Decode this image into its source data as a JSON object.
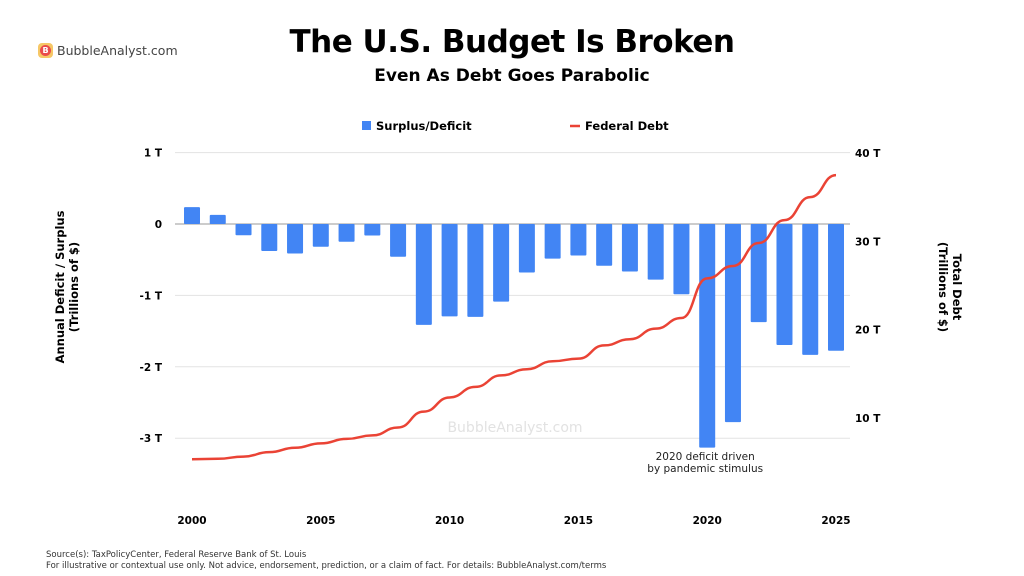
{
  "brand": "BubbleAnalyst.com",
  "watermark": "BubbleAnalyst.com",
  "footer": {
    "source": "Source(s): TaxPolicyCenter, Federal Reserve Bank of St. Louis",
    "disclaimer": "For illustrative or contextual use only. Not advice, endorsement, prediction, or a claim of fact. For details: BubbleAnalyst.com/terms"
  },
  "chart_data": {
    "type": "bar+line",
    "title": "The U.S. Budget Is Broken",
    "subtitle": "Even As Debt Goes Parabolic",
    "ylabel_left": "Annual Deficit / Surplus\n(Trillions of $)",
    "ylabel_left_lines": [
      "Annual Deficit / Surplus",
      "(Trillions of $)"
    ],
    "ylabel_right_lines": [
      "Total Debt",
      "(Trillions of $)"
    ],
    "ylim_left": [
      -3.95,
      1
    ],
    "ylim_right": [
      0,
      40
    ],
    "left_ticks": [
      {
        "v": 1,
        "label": "1 T"
      },
      {
        "v": 0,
        "label": "0"
      },
      {
        "v": -1,
        "label": "-1 T"
      },
      {
        "v": -2,
        "label": "-2 T"
      },
      {
        "v": -3,
        "label": "-3 T"
      }
    ],
    "right_ticks": [
      {
        "v": 40,
        "label": "40 T"
      },
      {
        "v": 30,
        "label": "30 T"
      },
      {
        "v": 20,
        "label": "20 T"
      },
      {
        "v": 10,
        "label": "10 T"
      }
    ],
    "x_ticks": [
      2000,
      2005,
      2010,
      2015,
      2020,
      2025
    ],
    "grid": true,
    "legend_position": "top",
    "x": [
      2000,
      2001,
      2002,
      2003,
      2004,
      2005,
      2006,
      2007,
      2008,
      2009,
      2010,
      2011,
      2012,
      2013,
      2014,
      2015,
      2016,
      2017,
      2018,
      2019,
      2020,
      2021,
      2022,
      2023,
      2024,
      2025
    ],
    "series": [
      {
        "name": "Surplus/Deficit",
        "type": "bar",
        "axis": "left",
        "color": "#4285f4",
        "values": [
          0.236,
          0.128,
          -0.158,
          -0.378,
          -0.413,
          -0.318,
          -0.248,
          -0.161,
          -0.459,
          -1.413,
          -1.294,
          -1.3,
          -1.087,
          -0.68,
          -0.485,
          -0.442,
          -0.585,
          -0.665,
          -0.779,
          -0.984,
          -3.132,
          -2.775,
          -1.375,
          -1.695,
          -1.833,
          -1.775
        ]
      },
      {
        "name": "Federal Debt",
        "type": "line",
        "axis": "right",
        "color": "#ea4335",
        "values": [
          5.3,
          5.35,
          5.6,
          6.1,
          6.6,
          7.1,
          7.6,
          8.0,
          8.9,
          10.7,
          12.3,
          13.5,
          14.8,
          15.5,
          16.4,
          16.7,
          18.2,
          18.9,
          20.1,
          21.3,
          25.8,
          27.2,
          29.8,
          32.4,
          35.0,
          37.5
        ]
      }
    ],
    "annotation": {
      "lines": [
        "2020 deficit driven",
        "by pandemic stimulus"
      ],
      "x": 2020
    }
  }
}
